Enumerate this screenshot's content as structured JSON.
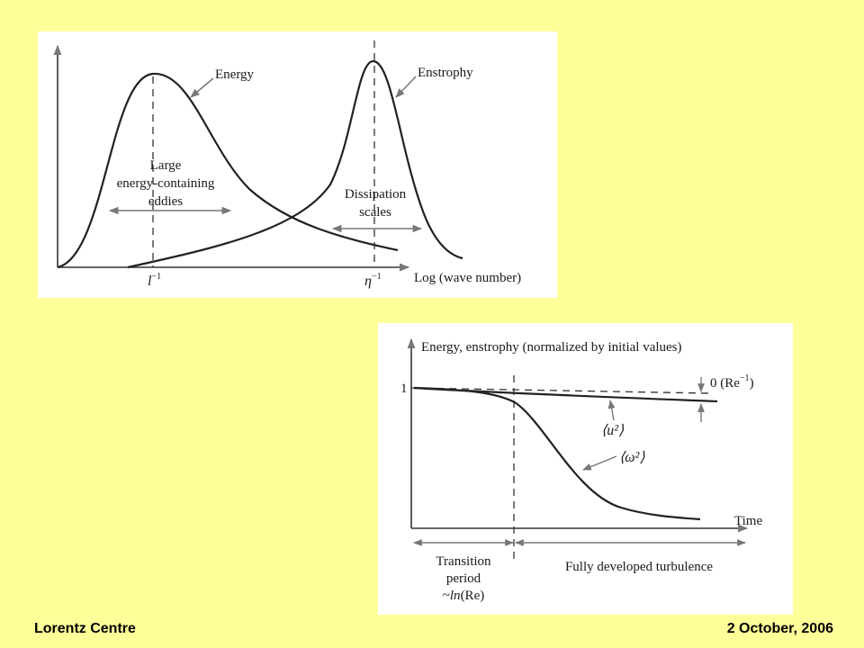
{
  "spectrum_diagram": {
    "energy_label": "Energy",
    "enstrophy_label": "Enstrophy",
    "large_eddies_line1": "Large",
    "large_eddies_line2": "energy-containing",
    "large_eddies_line3": "eddies",
    "dissipation_line1": "Dissipation",
    "dissipation_line2": "scales",
    "x_axis_label": "Log (wave number)",
    "tick_l": "l",
    "tick_eta": "η",
    "tick_exponent": "−1"
  },
  "decay_diagram": {
    "y_axis_label": "Energy, enstrophy (normalized by initial values)",
    "y_tick_one": "1",
    "order_label": "0 (Re",
    "order_exponent": "−1",
    "order_close": ")",
    "u2_label": "⟨u²⟩",
    "omega2_label": "⟨ω²⟩",
    "x_axis_label": "Time",
    "transition_line1": "Transition",
    "transition_line2": "period",
    "transition_prefix": "~",
    "transition_ln": "ln",
    "transition_arg": "(Re)",
    "developed_label": "Fully developed turbulence"
  },
  "footer": {
    "left": "Lorentz Centre",
    "right": "2 October, 2006"
  }
}
